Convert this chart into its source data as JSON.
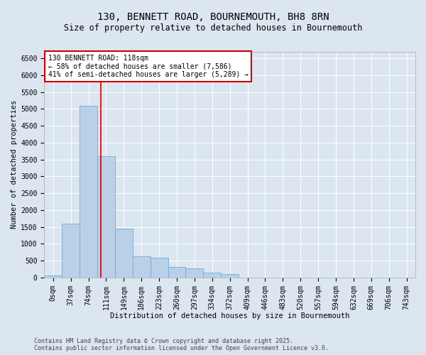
{
  "title": "130, BENNETT ROAD, BOURNEMOUTH, BH8 8RN",
  "subtitle": "Size of property relative to detached houses in Bournemouth",
  "xlabel": "Distribution of detached houses by size in Bournemouth",
  "ylabel": "Number of detached properties",
  "footer_line1": "Contains HM Land Registry data © Crown copyright and database right 2025.",
  "footer_line2": "Contains public sector information licensed under the Open Government Licence v3.0.",
  "bar_labels": [
    "0sqm",
    "37sqm",
    "74sqm",
    "111sqm",
    "149sqm",
    "186sqm",
    "223sqm",
    "260sqm",
    "297sqm",
    "334sqm",
    "372sqm",
    "409sqm",
    "446sqm",
    "483sqm",
    "520sqm",
    "557sqm",
    "594sqm",
    "632sqm",
    "669sqm",
    "706sqm",
    "743sqm"
  ],
  "bar_values": [
    50,
    1600,
    5100,
    3600,
    1450,
    620,
    590,
    310,
    275,
    150,
    100,
    0,
    0,
    0,
    0,
    0,
    0,
    0,
    0,
    0,
    0
  ],
  "bar_color": "#bad0e8",
  "bar_edgecolor": "#6baed6",
  "background_color": "#dce6f0",
  "vline_x": 3.18,
  "vline_color": "#cc0000",
  "annotation_text": "130 BENNETT ROAD: 118sqm\n← 58% of detached houses are smaller (7,586)\n41% of semi-detached houses are larger (5,289) →",
  "annotation_box_color": "#cc0000",
  "ylim": [
    0,
    6700
  ],
  "yticks": [
    0,
    500,
    1000,
    1500,
    2000,
    2500,
    3000,
    3500,
    4000,
    4500,
    5000,
    5500,
    6000,
    6500
  ],
  "grid_color": "#ffffff",
  "title_fontsize": 10,
  "subtitle_fontsize": 8.5,
  "axis_label_fontsize": 7.5,
  "tick_fontsize": 7,
  "footer_fontsize": 6,
  "annot_fontsize": 7
}
